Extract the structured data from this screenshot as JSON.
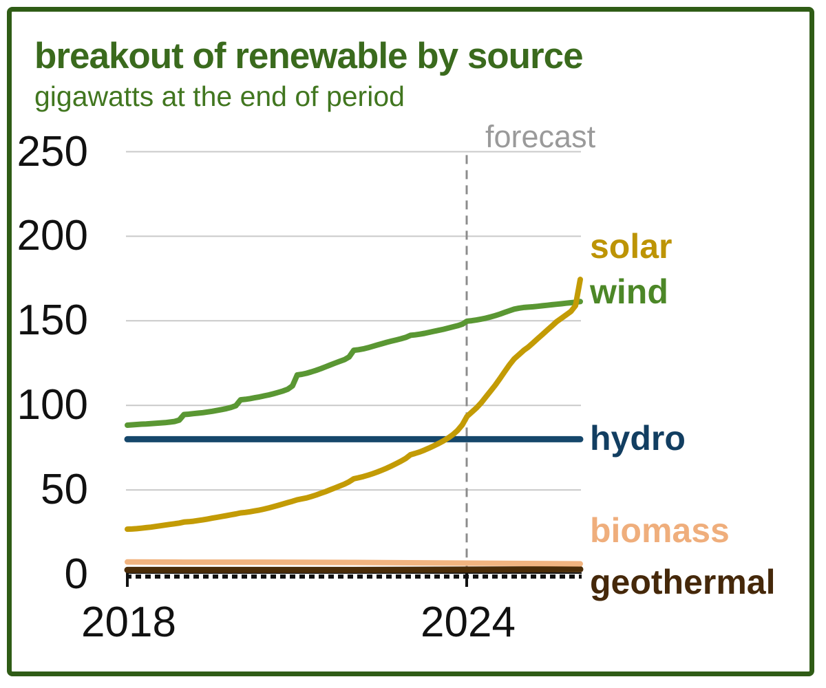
{
  "header": {
    "title": "breakout of renewable by source",
    "subtitle": "gigawatts at the end of period"
  },
  "chart_data": {
    "type": "line",
    "title": "breakout of renewable by source",
    "subtitle": "gigawatts at the end of period",
    "unit": "gigawatts",
    "ylim": [
      0,
      250
    ],
    "y_ticks": [
      0,
      50,
      100,
      150,
      200,
      250
    ],
    "x_tick_labels": [
      "2018",
      "2024"
    ],
    "x_start": "2017-12",
    "x_end": "2025-12",
    "frequency": "monthly",
    "forecast_label": "forecast",
    "forecast_start": "2024-01",
    "grid": "horizontal",
    "legend_position": "right-of-lines",
    "colors": {
      "grid": "#c9c9c9",
      "forecast_line": "#8c8c8c",
      "forecast_text": "#9a9a9a",
      "axis": "#111111",
      "title": "#3a6a1d",
      "subtitle": "#41761f",
      "frame_border": "#2f5c16"
    },
    "series": [
      {
        "name": "geothermal",
        "color": "#4a2c08",
        "label_color": "#45280a",
        "values": [
          2.7,
          2.7,
          2.7,
          2.7,
          2.7,
          2.8,
          2.9,
          3.0,
          3.1
        ]
      },
      {
        "name": "biomass",
        "color": "#f1b480",
        "label_color": "#efae7c",
        "values": [
          7.4,
          7.3,
          7.3,
          7.2,
          7.1,
          6.9,
          6.7,
          6.5,
          6.3
        ]
      },
      {
        "name": "hydro",
        "color": "#16476b",
        "label_color": "#123e61",
        "values": [
          80,
          80
        ]
      },
      {
        "name": "wind",
        "color": "#5a9733",
        "label_color": "#4c8727",
        "values": [
          88.3,
          88.5,
          88.7,
          88.9,
          89.0,
          89.2,
          89.4,
          89.6,
          89.8,
          90.1,
          90.5,
          91.3,
          94.6,
          94.8,
          95.1,
          95.4,
          95.7,
          96.1,
          96.5,
          97.0,
          97.5,
          98.1,
          98.8,
          99.8,
          103.3,
          103.6,
          104.0,
          104.5,
          105.0,
          105.6,
          106.2,
          106.9,
          107.7,
          108.5,
          109.5,
          111.5,
          118.0,
          118.4,
          119.0,
          119.8,
          120.7,
          121.7,
          122.8,
          123.9,
          125.0,
          126.0,
          127.0,
          128.6,
          132.6,
          132.9,
          133.4,
          134.1,
          134.9,
          135.7,
          136.5,
          137.3,
          138.0,
          138.7,
          139.4,
          140.2,
          141.4,
          141.7,
          142.1,
          142.6,
          143.2,
          143.8,
          144.4,
          145.0,
          145.7,
          146.4,
          147.1,
          148.0,
          149.8,
          150.1,
          150.5,
          151.0,
          151.6,
          152.3,
          153.1,
          154.0,
          155.0,
          156.0,
          156.9,
          157.5,
          157.9,
          158.1,
          158.3,
          158.6,
          158.9,
          159.2,
          159.5,
          159.8,
          160.1,
          160.4,
          160.7,
          161.0,
          161.4
        ]
      },
      {
        "name": "solar",
        "color": "#c39b05",
        "label_color": "#bd9405",
        "values": [
          26.8,
          26.9,
          27.1,
          27.4,
          27.7,
          28.0,
          28.4,
          28.8,
          29.2,
          29.6,
          30.0,
          30.4,
          31.0,
          31.2,
          31.5,
          31.9,
          32.3,
          32.8,
          33.3,
          33.8,
          34.3,
          34.8,
          35.3,
          35.8,
          36.4,
          36.7,
          37.1,
          37.6,
          38.1,
          38.7,
          39.4,
          40.1,
          40.9,
          41.7,
          42.5,
          43.3,
          44.2,
          44.7,
          45.3,
          46.1,
          47.0,
          48.0,
          49.0,
          50.1,
          51.2,
          52.3,
          53.4,
          54.8,
          56.6,
          57.2,
          57.9,
          58.7,
          59.6,
          60.6,
          61.7,
          62.9,
          64.2,
          65.6,
          67.0,
          68.6,
          70.8,
          71.6,
          72.5,
          73.6,
          74.8,
          76.1,
          77.5,
          79.0,
          80.7,
          82.7,
          85.2,
          88.5,
          93.5,
          96.0,
          98.5,
          101.5,
          105.0,
          108.5,
          112.0,
          116.0,
          120.0,
          124.0,
          127.5,
          130.0,
          132.5,
          134.5,
          137.0,
          139.5,
          142.0,
          144.5,
          147.0,
          149.5,
          151.5,
          153.5,
          155.5,
          159.0,
          174.5
        ]
      }
    ]
  }
}
